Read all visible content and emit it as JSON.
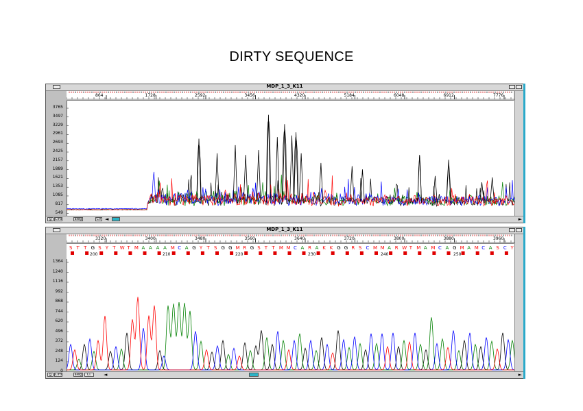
{
  "page_title": "DIRTY SEQUENCE",
  "windows": [
    {
      "title": "MDP_1_3_K11",
      "y_ticks": [
        "3765",
        "3497",
        "3229",
        "2961",
        "2693",
        "2425",
        "2157",
        "1889",
        "1621",
        "1353",
        "1085",
        "817",
        "549"
      ],
      "x_ticks": [
        "864",
        "1728",
        "2592",
        "3456",
        "4320",
        "5184",
        "6048",
        "6912",
        "7776"
      ],
      "toolbar_labels": [
        "Clrd",
        "aleg",
        "Clr"
      ]
    },
    {
      "title": "MDP_1_3_K11",
      "y_ticks": [
        "1364",
        "1240",
        "1116",
        "992",
        "868",
        "744",
        "620",
        "496",
        "372",
        "248",
        "124",
        "0"
      ],
      "x_ticks": [
        "3320",
        "3400",
        "3480",
        "3560",
        "3640",
        "3720",
        "3800",
        "3880",
        "3960"
      ],
      "base_positions": [
        "200",
        "210",
        "220",
        "230",
        "240",
        "250"
      ],
      "bases": "STTGSYTWTMAAAAMCAGYTSGGMRGSTTMMCARAKKGGRSCMMARWTMAMCAGMAMCASCY",
      "toolbar_labels": [
        "Clrd",
        "aleg",
        "Cl."
      ]
    }
  ],
  "chart_data": [
    {
      "type": "line",
      "title": "MDP_1_3_K11",
      "xlabel": "",
      "ylabel": "",
      "xlim": [
        0,
        8640
      ],
      "ylim": [
        549,
        3900
      ],
      "series": [
        {
          "color": "#000000"
        },
        {
          "color": "#008000"
        },
        {
          "color": "#0000ff"
        },
        {
          "color": "#ff0000"
        }
      ],
      "notable_peaks": [
        {
          "x": 2550,
          "y": 2850,
          "series": 0
        },
        {
          "x": 3890,
          "y": 3590,
          "series": 0
        },
        {
          "x": 4200,
          "y": 3300,
          "series": 0
        },
        {
          "x": 4420,
          "y": 3050,
          "series": 0
        },
        {
          "x": 6800,
          "y": 2350,
          "series": 0
        },
        {
          "x": 7360,
          "y": 2200,
          "series": 0
        },
        {
          "x": 1680,
          "y": 1900,
          "series": 2
        },
        {
          "x": 8400,
          "y": 1550,
          "series": 1
        }
      ]
    },
    {
      "type": "line",
      "title": "MDP_1_3_K11",
      "xlabel": "",
      "ylabel": "",
      "xlim": [
        3275,
        4060
      ],
      "ylim": [
        0,
        1400
      ],
      "series": [
        {
          "color": "#000000"
        },
        {
          "color": "#008000"
        },
        {
          "color": "#0000ff"
        },
        {
          "color": "#ff0000"
        }
      ]
    }
  ],
  "colors": {
    "A": "#008000",
    "C": "#0000ff",
    "G": "#000000",
    "T": "#ff0000",
    "other": "#ff0000",
    "window_bg": "#c0c0c0",
    "scroll_thumb": "#2bb3c6"
  },
  "icons": {
    "menu": "menu-box-icon",
    "minimize": "minimize-icon",
    "maximize": "maximize-icon"
  }
}
